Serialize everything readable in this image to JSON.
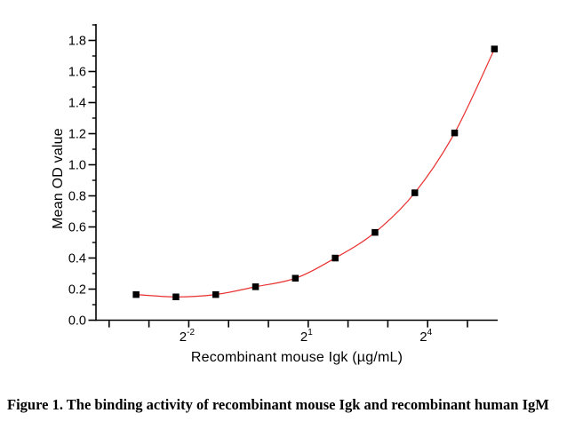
{
  "chart_data": {
    "type": "scatter",
    "xlabel": "Recombinant mouse Igk (µg/mL)",
    "ylabel": "Mean OD value",
    "x_scale": "log2",
    "x": [
      0.1,
      0.2,
      0.4,
      0.8,
      1.6,
      3.2,
      6.4,
      12.8,
      25.6,
      51.2
    ],
    "values": [
      0.165,
      0.15,
      0.165,
      0.215,
      0.27,
      0.4,
      0.565,
      0.82,
      1.205,
      1.745
    ],
    "x_axis": {
      "tick_exponents": [
        -4,
        -3,
        -2,
        -1,
        0,
        1,
        2,
        3,
        4,
        5
      ],
      "labeled_ticks": [
        {
          "base": "2",
          "exp": "-2"
        },
        {
          "base": "2",
          "exp": "1"
        },
        {
          "base": "2",
          "exp": "4"
        }
      ]
    },
    "y_axis": {
      "ticks": [
        0.0,
        0.2,
        0.4,
        0.6,
        0.8,
        1.0,
        1.2,
        1.4,
        1.6,
        1.8
      ],
      "tick_labels": [
        "0.0",
        "0.2",
        "0.4",
        "0.6",
        "0.8",
        "1.0",
        "1.2",
        "1.4",
        "1.6",
        "1.8"
      ],
      "minor_step": 0.1,
      "range": [
        0.0,
        1.9
      ]
    },
    "grid": false,
    "marker": {
      "shape": "square",
      "color": "#000000",
      "size": 7.5
    },
    "line": {
      "color": "#e8312f",
      "width": 1.2
    },
    "axis_color": "#000000"
  },
  "caption": "Figure 1. The binding activity of recombinant mouse Igk and recombinant human IgM"
}
